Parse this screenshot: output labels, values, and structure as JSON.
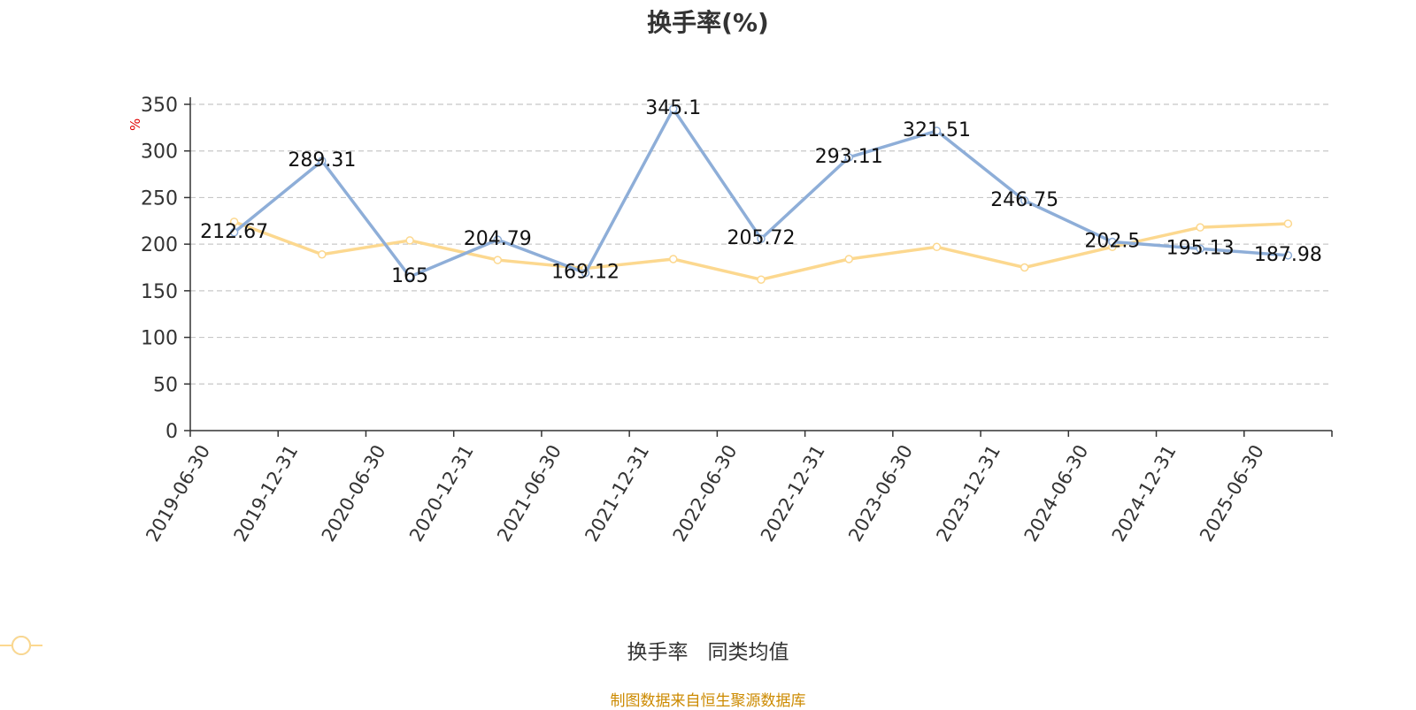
{
  "chart_data": {
    "type": "line",
    "title": "换手率(%)",
    "ylabel": "%",
    "ylim": [
      0,
      350
    ],
    "yticks": [
      0,
      50,
      100,
      150,
      200,
      250,
      300,
      350
    ],
    "grid": true,
    "legend_position": "bottom",
    "categories": [
      "2019-06-30",
      "2019-12-31",
      "2020-06-30",
      "2020-12-31",
      "2021-06-30",
      "2021-12-31",
      "2022-06-30",
      "2022-12-31",
      "2023-06-30",
      "2023-12-31",
      "2024-06-30",
      "2024-12-31",
      "2025-06-30"
    ],
    "series": [
      {
        "name": "换手率",
        "color": "#8eaed8",
        "values": [
          212.67,
          289.31,
          165,
          204.79,
          169.12,
          345.1,
          205.72,
          293.11,
          321.51,
          246.75,
          202.5,
          195.13,
          187.98
        ],
        "labels": [
          "212.67",
          "289.31",
          "165",
          "204.79",
          "169.12",
          "345.1",
          "205.72",
          "293.11",
          "321.51",
          "246.75",
          "202.5",
          "195.13",
          "187.98"
        ]
      },
      {
        "name": "同类均值",
        "color": "#fcd88f",
        "values": [
          224,
          189,
          204,
          183,
          174,
          184,
          162,
          184,
          197,
          175,
          197,
          218,
          222
        ]
      }
    ]
  },
  "footer": {
    "source": "制图数据来自恒生聚源数据库"
  }
}
